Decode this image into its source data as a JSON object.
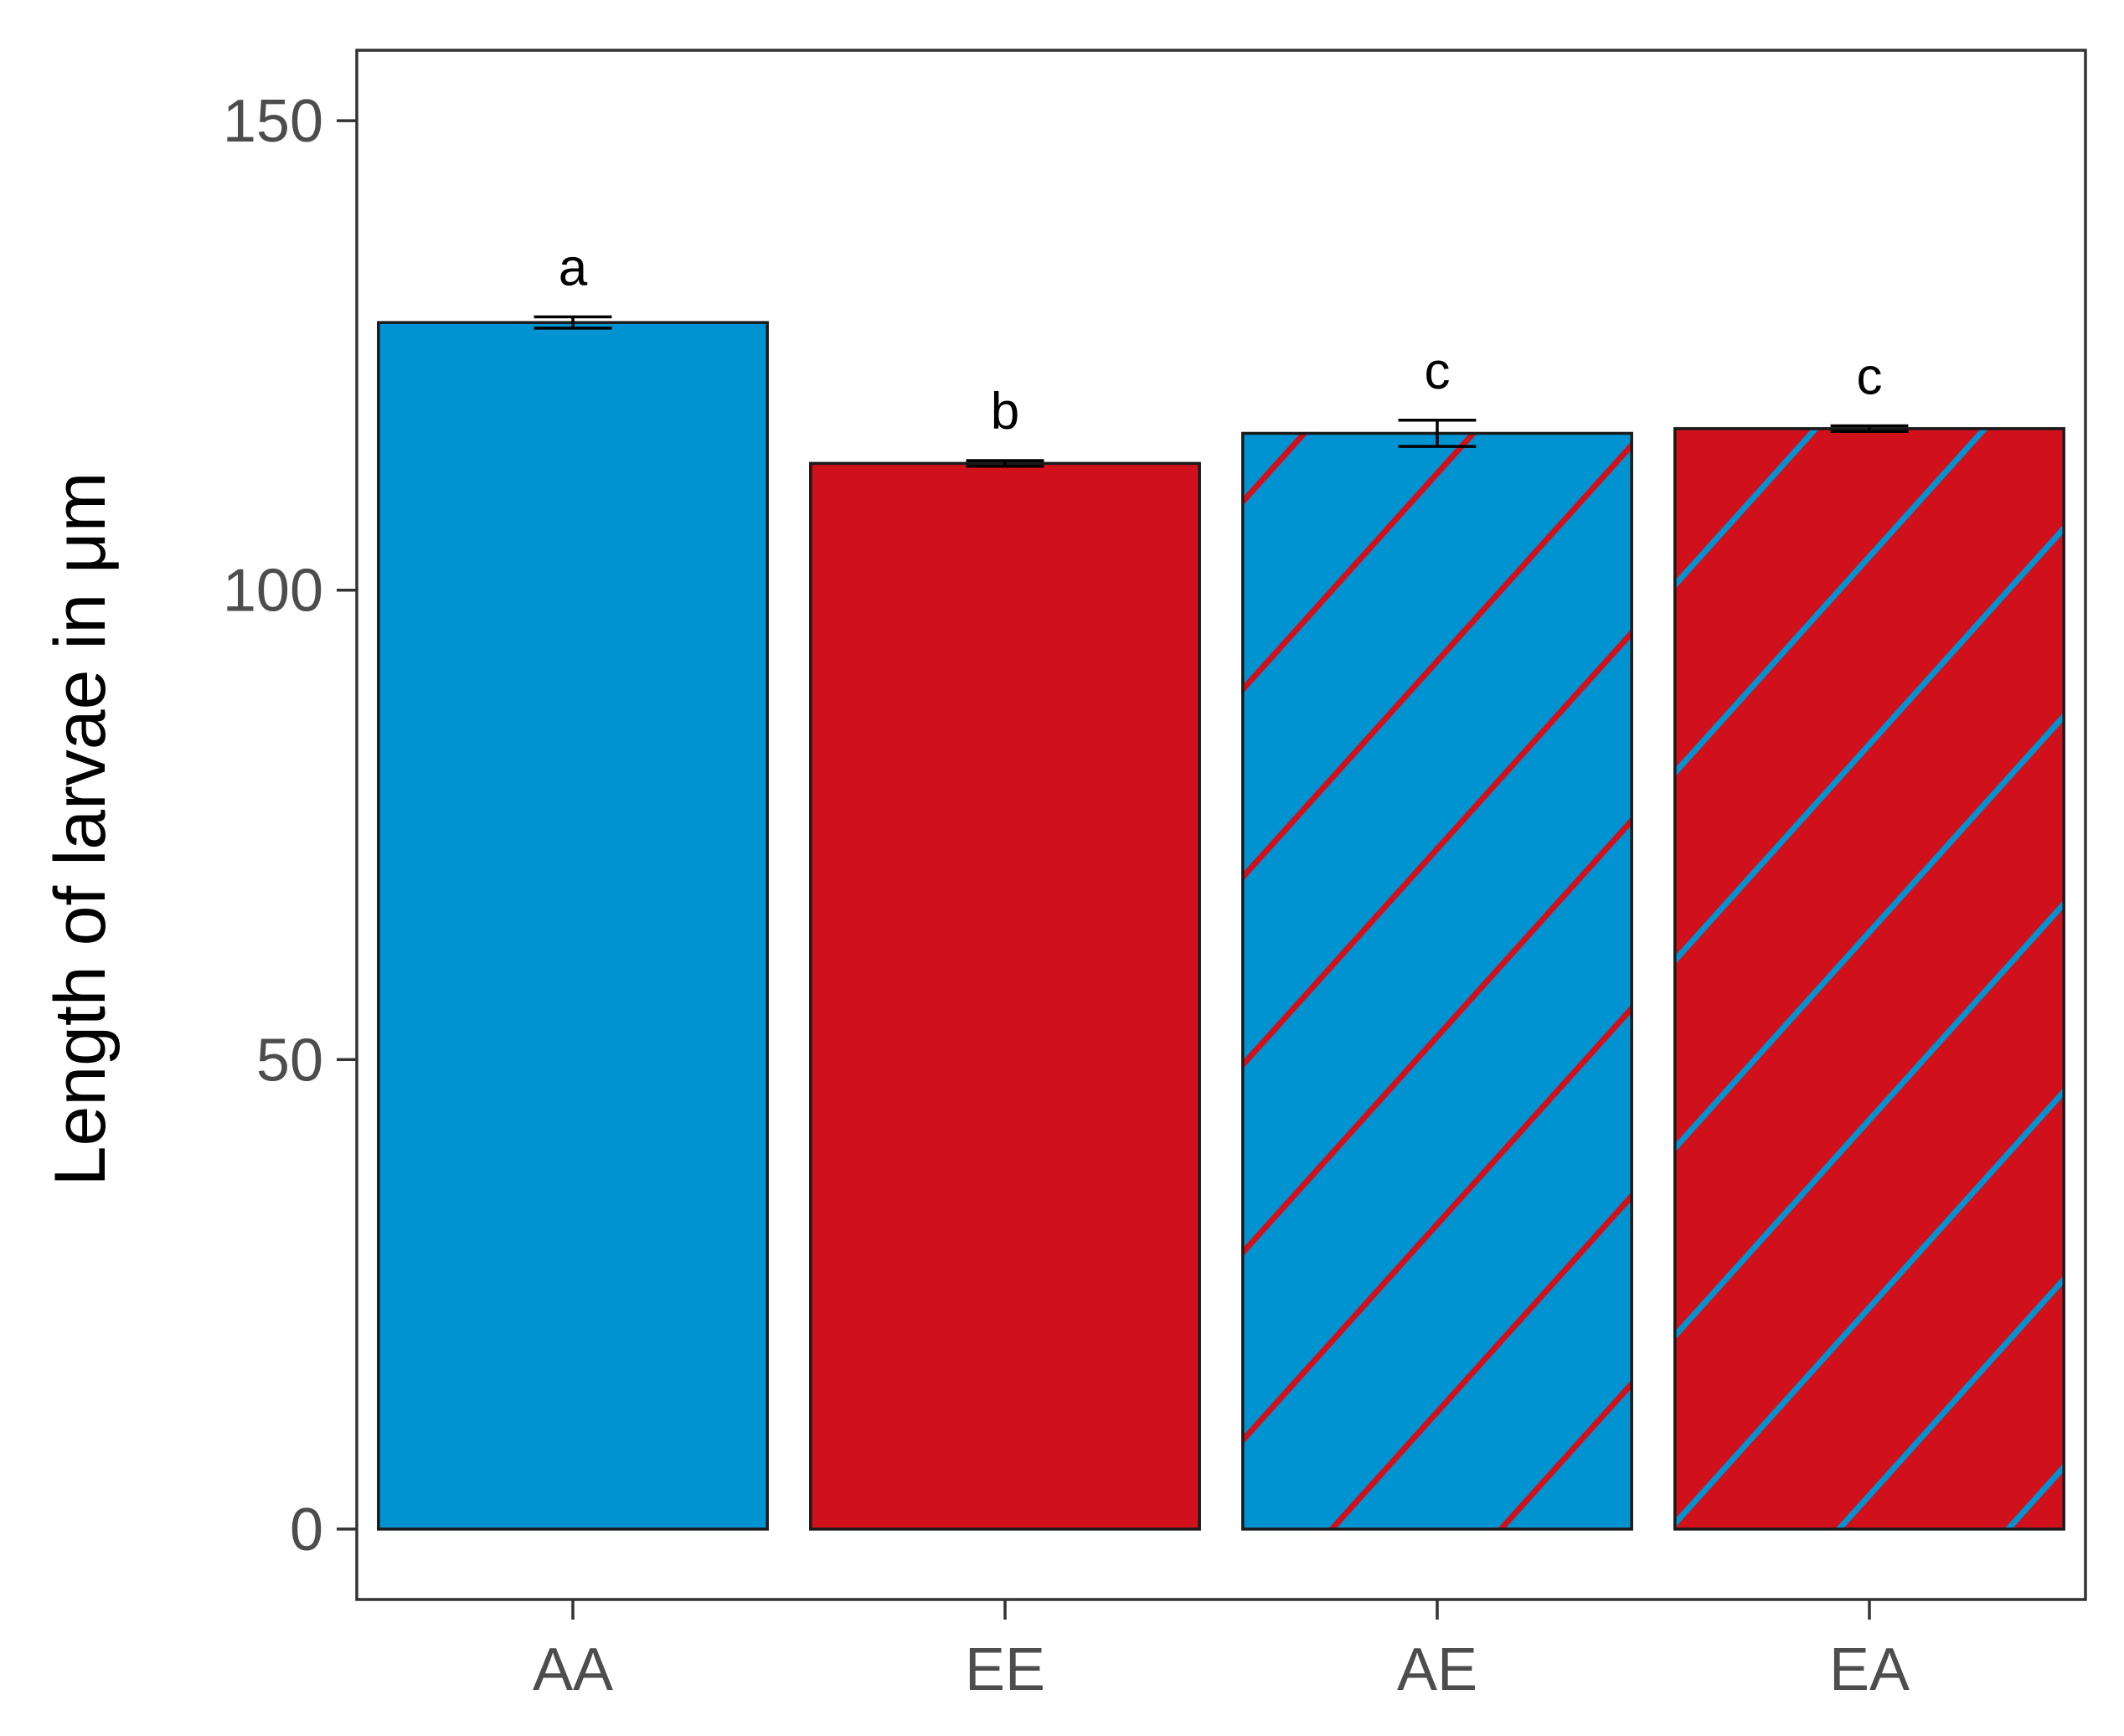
{
  "chart_data": {
    "type": "bar",
    "title": "",
    "xlabel": "",
    "ylabel": "Length of larvae in  μm",
    "ylim": [
      -7.5,
      157.5
    ],
    "yticks": [
      0,
      50,
      100,
      150
    ],
    "grid": false,
    "legend": "none",
    "categories": [
      "AA",
      "EE",
      "AE",
      "EA"
    ],
    "values": [
      128.5,
      113.5,
      116.7,
      117.2
    ],
    "errors": [
      0.6,
      0.3,
      1.4,
      0.3
    ],
    "significance_labels": [
      "a",
      "b",
      "c",
      "c"
    ],
    "fills": [
      {
        "base": "#0093d2",
        "hatch": null
      },
      {
        "base": "#d0111b",
        "hatch": null
      },
      {
        "base": "#0093d2",
        "hatch": "#d0111b"
      },
      {
        "base": "#d0111b",
        "hatch": "#0093d2"
      }
    ],
    "colors": {
      "axis": "#333333",
      "tick_text": "#4d4d4d",
      "bar_outline": "#1a1a1a"
    }
  }
}
